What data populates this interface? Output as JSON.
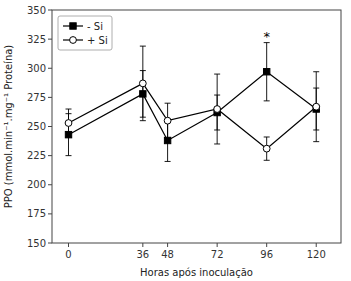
{
  "chart_data": {
    "type": "line",
    "x": [
      0,
      36,
      48,
      72,
      96,
      120
    ],
    "xlabel": "Horas após inoculação",
    "ylabel": "PPO (mmol.min⁻¹.mg⁻¹ Proteína)",
    "xlim": [
      -8,
      132
    ],
    "xticks": [
      0,
      36,
      48,
      72,
      96,
      120
    ],
    "ylim": [
      150,
      350
    ],
    "yticks": [
      150,
      175,
      200,
      225,
      250,
      275,
      300,
      325,
      350
    ],
    "series": [
      {
        "name": "- Si",
        "color": "#000000",
        "marker": "square",
        "line_style": "solid",
        "values": [
          243,
          278,
          238,
          262,
          297,
          265
        ],
        "errors": [
          18,
          20,
          18,
          15,
          25,
          18
        ]
      },
      {
        "name": "+ Si",
        "color": "#000000",
        "marker": "open-circle",
        "line_style": "solid",
        "values": [
          253,
          287,
          255,
          265,
          231,
          267
        ],
        "errors": [
          12,
          32,
          15,
          30,
          10,
          30
        ]
      }
    ],
    "annotations": [
      {
        "text": "*",
        "x": 96,
        "y": 323
      }
    ],
    "legend": "upper left",
    "grid": false
  }
}
